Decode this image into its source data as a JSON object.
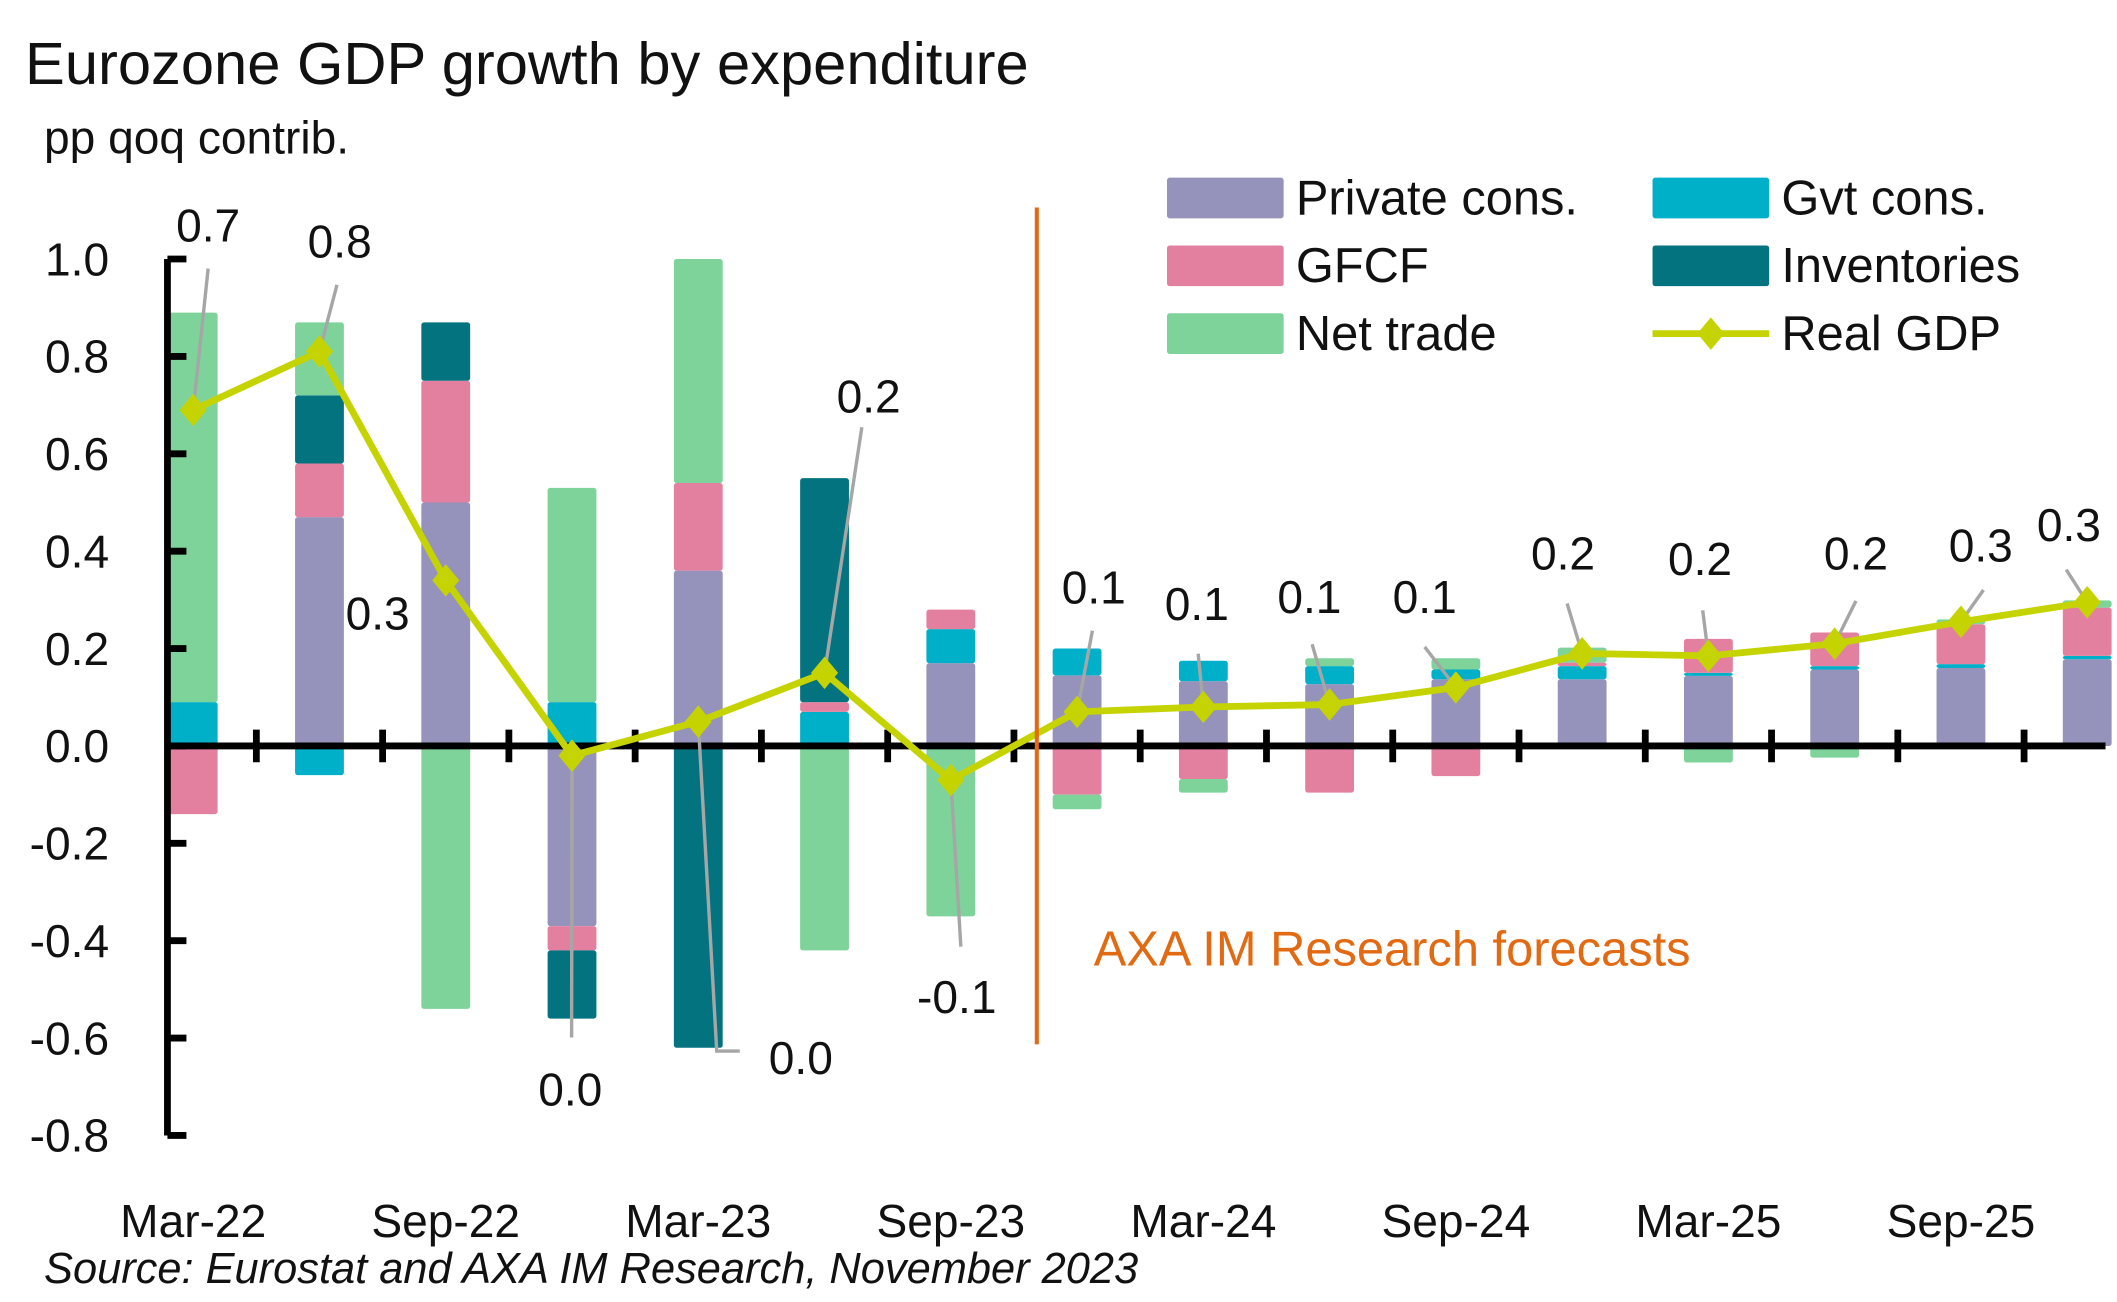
{
  "chart_data": {
    "type": "bar",
    "stacked": true,
    "title": "Eurozone GDP growth by expenditure",
    "subtitle": "pp qoq contrib.",
    "source": "Source: Eurostat and AXA IM Research, November 2023",
    "annotation": "AXA IM Research forecasts",
    "forecast_divider_after_index": 7,
    "x_tick_labels": [
      "Mar-22",
      "Sep-22",
      "Mar-23",
      "Sep-23",
      "Mar-24",
      "Sep-24",
      "Mar-25",
      "Sep-25"
    ],
    "y_tick_labels": [
      "1.0",
      "0.8",
      "0.6",
      "0.4",
      "0.2",
      "0.0",
      "-0.2",
      "-0.4",
      "-0.6",
      "-0.8"
    ],
    "ylim": [
      -0.8,
      1.0
    ],
    "grid": false,
    "legend_placement": "top-right",
    "series": [
      {
        "name": "Private cons.",
        "color": "#9592bb",
        "values": [
          0,
          0.47,
          0.5,
          -0.37,
          0.36,
          0,
          0.17,
          0.145,
          0.133,
          0.127,
          0.137,
          0.137,
          0.144,
          0.157,
          0.16,
          0.178
        ]
      },
      {
        "name": "Gvt cons.",
        "color": "#00afc8",
        "values": [
          0.09,
          -0.06,
          0,
          0.09,
          0,
          0.07,
          0.07,
          0.055,
          0.042,
          0.037,
          0.02,
          0.027,
          0.006,
          0.007,
          0.008,
          0.007
        ]
      },
      {
        "name": "GFCF",
        "color": "#e380a0",
        "values": [
          -0.14,
          0.11,
          0.25,
          -0.05,
          0.18,
          0.02,
          0.04,
          -0.1,
          -0.068,
          -0.096,
          -0.062,
          0.007,
          0.07,
          0.069,
          0.082,
          0.099
        ]
      },
      {
        "name": "Inventories",
        "color": "#047380",
        "values": [
          0,
          0.14,
          0.12,
          -0.14,
          -0.62,
          0.46,
          0,
          0,
          0,
          0,
          0,
          0,
          0,
          0,
          0,
          0
        ]
      },
      {
        "name": "Net trade",
        "color": "#7ed39b",
        "values": [
          0.8,
          0.15,
          -0.54,
          0.44,
          0.46,
          -0.42,
          -0.35,
          -0.03,
          -0.028,
          0.016,
          0.023,
          0.031,
          -0.034,
          -0.024,
          0.01,
          0.015
        ]
      }
    ],
    "line": {
      "name": "Real GDP",
      "color": "#c5d400",
      "values": [
        0.69,
        0.81,
        0.34,
        -0.02,
        0.05,
        0.15,
        -0.07,
        0.07,
        0.08,
        0.085,
        0.12,
        0.19,
        0.185,
        0.21,
        0.255,
        0.295
      ]
    },
    "data_labels": [
      "0.7",
      "0.8",
      "0.3",
      "0.0",
      "0.0",
      "0.2",
      "-0.1",
      "0.1",
      "0.1",
      "0.1",
      "0.1",
      "0.2",
      "0.2",
      "0.2",
      "0.3",
      "0.3"
    ],
    "colors": {
      "divider": "#e26a12",
      "leader": "#a6a6a6",
      "axis": "#000000"
    }
  }
}
